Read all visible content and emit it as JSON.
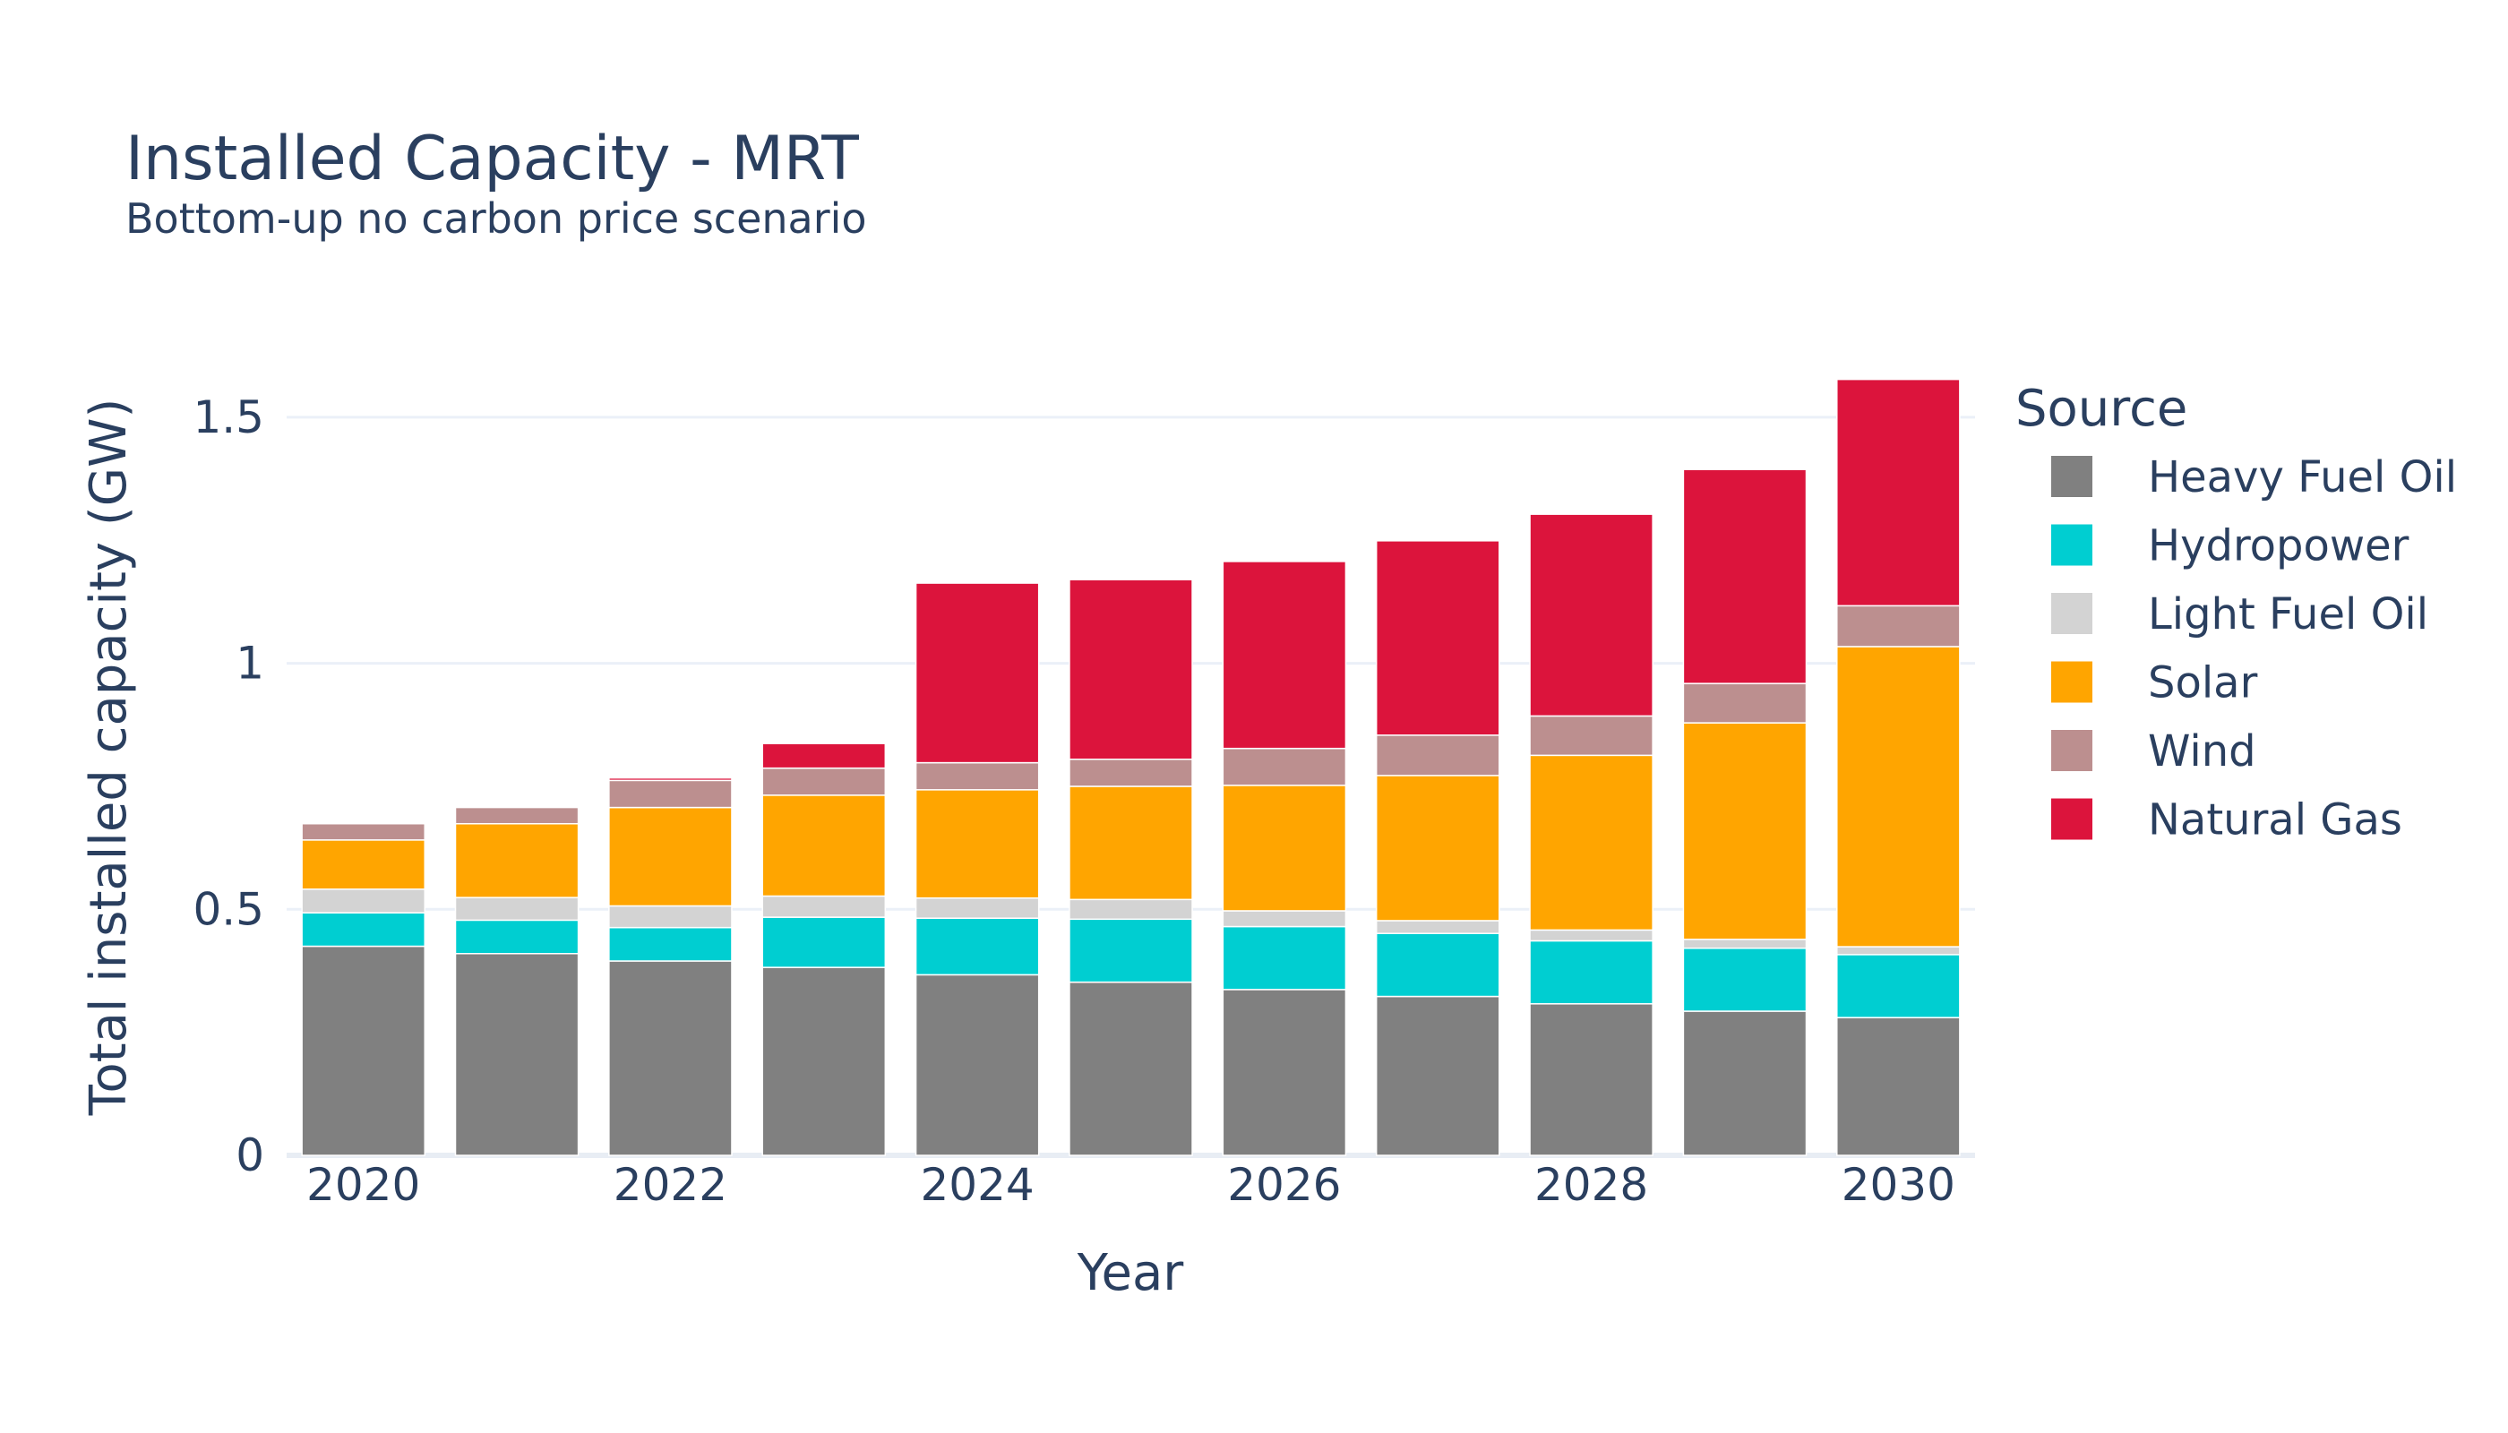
{
  "chart_data": {
    "type": "bar",
    "stacked": true,
    "title": "Installed Capacity - MRT",
    "subtitle": "Bottom-up no carbon price scenario",
    "xlabel": "Year",
    "ylabel": "Total installed capacity (GW)",
    "ylim": [
      0,
      1.62
    ],
    "yticks": [
      0,
      0.5,
      1,
      1.5
    ],
    "ytick_labels": [
      "0",
      "0.5",
      "1",
      "1.5"
    ],
    "xticks": [
      2020,
      2022,
      2024,
      2026,
      2028,
      2030
    ],
    "xtick_labels": [
      "2020",
      "2022",
      "2024",
      "2026",
      "2028",
      "2030"
    ],
    "grid": true,
    "legend": {
      "title": "Source",
      "position": "right"
    },
    "categories": [
      2020,
      2021,
      2022,
      2023,
      2024,
      2025,
      2026,
      2027,
      2028,
      2029,
      2030
    ],
    "series": [
      {
        "name": "Heavy Fuel Oil",
        "color": "#808080",
        "values": [
          0.425,
          0.41,
          0.395,
          0.382,
          0.367,
          0.352,
          0.337,
          0.323,
          0.308,
          0.293,
          0.28
        ]
      },
      {
        "name": "Hydropower",
        "color": "#00ced1",
        "values": [
          0.068,
          0.068,
          0.068,
          0.102,
          0.115,
          0.128,
          0.128,
          0.128,
          0.128,
          0.128,
          0.128
        ]
      },
      {
        "name": "Light Fuel Oil",
        "color": "#d3d3d3",
        "values": [
          0.048,
          0.046,
          0.044,
          0.043,
          0.041,
          0.04,
          0.032,
          0.026,
          0.022,
          0.018,
          0.016
        ]
      },
      {
        "name": "Solar",
        "color": "#ffa500",
        "values": [
          0.1,
          0.15,
          0.2,
          0.205,
          0.22,
          0.23,
          0.255,
          0.295,
          0.355,
          0.44,
          0.61
        ]
      },
      {
        "name": "Wind",
        "color": "#bc8f8f",
        "values": [
          0.033,
          0.033,
          0.055,
          0.055,
          0.055,
          0.055,
          0.075,
          0.082,
          0.08,
          0.08,
          0.083
        ]
      },
      {
        "name": "Natural Gas",
        "color": "#dc143c",
        "values": [
          0.0,
          0.0,
          0.005,
          0.05,
          0.365,
          0.365,
          0.38,
          0.395,
          0.41,
          0.435,
          0.46
        ]
      }
    ]
  }
}
